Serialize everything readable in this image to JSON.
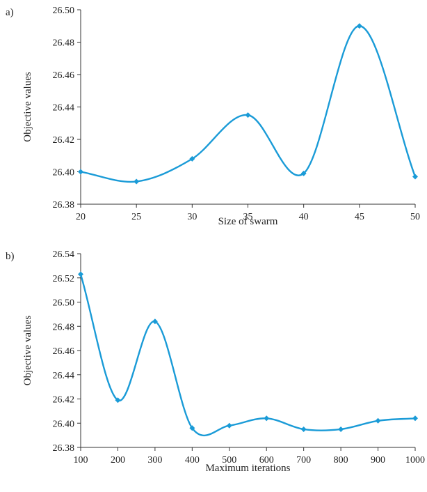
{
  "colors": {
    "series": "#1a9bd7",
    "axis": "#333333"
  },
  "chart_data": [
    {
      "type": "line",
      "panel_label": "a)",
      "xlabel": "Size of swarm",
      "ylabel": "Objective values",
      "x": [
        20,
        25,
        30,
        35,
        40,
        45,
        50
      ],
      "xticks": [
        20,
        25,
        30,
        35,
        40,
        45,
        50
      ],
      "xlim": [
        20,
        50
      ],
      "ylim": [
        26.38,
        26.5
      ],
      "yticks": [
        "26.38",
        "26.40",
        "26.42",
        "26.44",
        "26.46",
        "26.48",
        "26.50"
      ],
      "series": [
        {
          "values": [
            26.4,
            26.394,
            26.408,
            26.435,
            26.399,
            26.49,
            26.397
          ]
        }
      ],
      "smooth": true,
      "markers": "diamond",
      "grid": false
    },
    {
      "type": "line",
      "panel_label": "b)",
      "xlabel": "Maximum iterations",
      "ylabel": "Objective values",
      "x": [
        100,
        200,
        300,
        400,
        500,
        600,
        700,
        800,
        900,
        1000
      ],
      "xticks": [
        100,
        200,
        300,
        400,
        500,
        600,
        700,
        800,
        900,
        1000
      ],
      "xlim": [
        100,
        1000
      ],
      "ylim": [
        26.38,
        26.54
      ],
      "yticks": [
        "26.38",
        "26.40",
        "26.42",
        "26.44",
        "26.46",
        "26.48",
        "26.50",
        "26.52",
        "26.54"
      ],
      "series": [
        {
          "values": [
            26.523,
            26.419,
            26.484,
            26.396,
            26.398,
            26.404,
            26.395,
            26.395,
            26.402,
            26.404
          ]
        }
      ],
      "smooth": true,
      "markers": "diamond",
      "grid": false
    }
  ]
}
